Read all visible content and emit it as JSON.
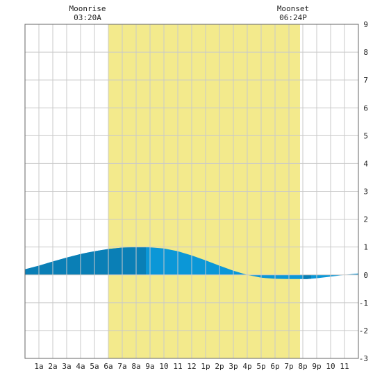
{
  "chart_data": {
    "type": "area",
    "x_tick_labels": [
      "1a",
      "2a",
      "3a",
      "4a",
      "5a",
      "6a",
      "7a",
      "8a",
      "9a",
      "10",
      "11",
      "12",
      "1p",
      "2p",
      "3p",
      "4p",
      "5p",
      "6p",
      "7p",
      "8p",
      "9p",
      "10",
      "11"
    ],
    "y_tick_labels": [
      "-3",
      "-2",
      "-1",
      "0",
      "1",
      "2",
      "3",
      "4",
      "5",
      "6",
      "7",
      "8",
      "9"
    ],
    "xlim": [
      0,
      24
    ],
    "ylim": [
      -3,
      9
    ],
    "grid": true,
    "daylight": {
      "start_hour": 6.0,
      "end_hour": 19.8,
      "color": "#f3ea8c"
    },
    "annotations": [
      {
        "title": "Moonrise",
        "time": "03:20A",
        "hour": 4.5
      },
      {
        "title": "Moonset",
        "time": "06:24P",
        "hour": 19.3
      }
    ],
    "colors": {
      "dark_fill": "#0a7fb6",
      "light_fill": "#0b97d7",
      "grid": "#c9c9c9",
      "frame": "#666666"
    },
    "x": [
      0,
      1,
      2,
      3,
      4,
      5,
      6,
      7,
      8,
      8.7,
      9,
      10,
      11,
      12,
      13,
      14,
      15,
      16,
      17,
      18,
      19,
      20,
      20.3,
      21,
      22,
      23,
      24
    ],
    "y": [
      0.2,
      0.33,
      0.48,
      0.62,
      0.75,
      0.85,
      0.93,
      0.98,
      1.0,
      1.0,
      0.99,
      0.95,
      0.85,
      0.7,
      0.52,
      0.33,
      0.15,
      0.0,
      -0.1,
      -0.14,
      -0.15,
      -0.15,
      -0.15,
      -0.12,
      -0.06,
      0.0,
      0.05
    ],
    "dark_segments": [
      [
        0,
        8.7
      ],
      [
        20.0,
        20.6
      ]
    ]
  }
}
